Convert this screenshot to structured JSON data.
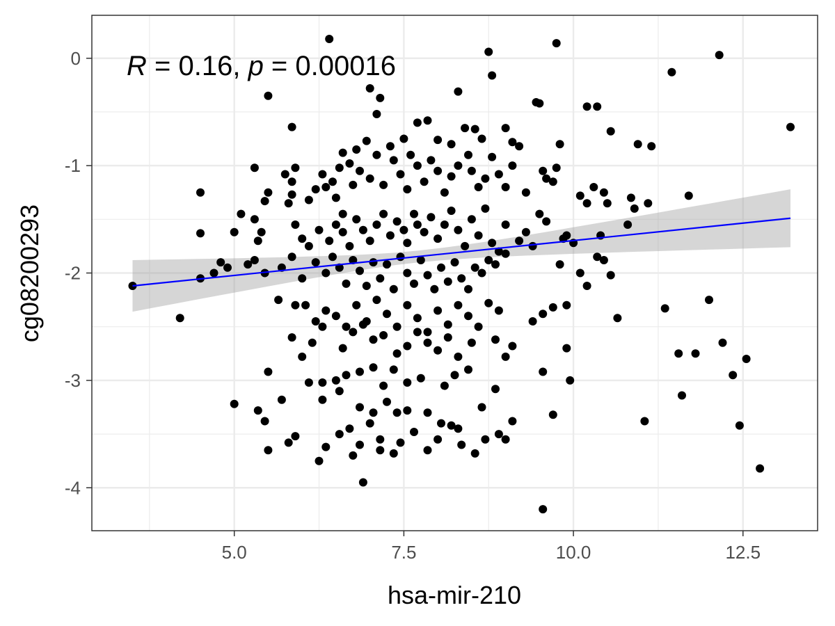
{
  "chart_data": {
    "type": "scatter",
    "title": "",
    "xlabel": "hsa-mir-210",
    "ylabel": "cg08200293",
    "xlim": [
      2.9,
      13.6
    ],
    "ylim": [
      -4.4,
      0.4
    ],
    "x_ticks": [
      5.0,
      7.5,
      10.0,
      12.5
    ],
    "x_tick_labels": [
      "5.0",
      "7.5",
      "10.0",
      "12.5"
    ],
    "y_ticks": [
      0,
      -1,
      -2,
      -3,
      -4
    ],
    "y_tick_labels": [
      "0",
      "-1",
      "-2",
      "-3",
      "-4"
    ],
    "grid": true,
    "theme": "bw",
    "annotation": {
      "r_symbol": "R",
      "r_text": " = 0.16, ",
      "p_symbol": "p",
      "p_text": " = 0.00016"
    },
    "regression": {
      "method": "lm",
      "x_range": [
        3.5,
        13.2
      ],
      "y_at_start": -2.12,
      "y_at_end": -1.49,
      "ci_at_start": [
        -2.36,
        -1.88
      ],
      "ci_at_end": [
        -1.76,
        -1.22
      ],
      "line_color": "#0000ff",
      "band_color": "#999999"
    },
    "point_color": "#000000",
    "points": [
      [
        6.4,
        0.18
      ],
      [
        9.75,
        0.14
      ],
      [
        12.15,
        0.03
      ],
      [
        8.75,
        0.06
      ],
      [
        8.8,
        -0.16
      ],
      [
        7.0,
        -0.28
      ],
      [
        7.15,
        -0.37
      ],
      [
        5.5,
        -0.35
      ],
      [
        8.3,
        -0.31
      ],
      [
        11.45,
        -0.13
      ],
      [
        13.2,
        -0.64
      ],
      [
        9.45,
        -0.41
      ],
      [
        9.5,
        -0.42
      ],
      [
        10.2,
        -0.45
      ],
      [
        10.35,
        -0.45
      ],
      [
        10.55,
        -0.68
      ],
      [
        10.95,
        -0.8
      ],
      [
        11.15,
        -0.82
      ],
      [
        9.8,
        -0.8
      ],
      [
        5.85,
        -0.64
      ],
      [
        7.1,
        -0.52
      ],
      [
        7.3,
        -0.82
      ],
      [
        7.5,
        -0.75
      ],
      [
        7.7,
        -0.6
      ],
      [
        7.85,
        -0.58
      ],
      [
        8.0,
        -0.76
      ],
      [
        8.2,
        -0.8
      ],
      [
        8.4,
        -0.65
      ],
      [
        8.55,
        -0.66
      ],
      [
        8.65,
        -0.75
      ],
      [
        9.0,
        -0.65
      ],
      [
        9.1,
        -0.78
      ],
      [
        9.2,
        -0.82
      ],
      [
        6.95,
        -0.77
      ],
      [
        6.8,
        -0.85
      ],
      [
        6.6,
        -0.88
      ],
      [
        6.7,
        -0.98
      ],
      [
        6.55,
        -1.02
      ],
      [
        6.3,
        -1.08
      ],
      [
        6.45,
        -1.15
      ],
      [
        5.9,
        -1.02
      ],
      [
        5.75,
        -1.08
      ],
      [
        5.85,
        -1.15
      ],
      [
        5.3,
        -1.02
      ],
      [
        4.5,
        -1.25
      ],
      [
        5.5,
        -1.25
      ],
      [
        5.45,
        -1.33
      ],
      [
        5.8,
        -1.35
      ],
      [
        5.85,
        -1.27
      ],
      [
        6.2,
        -1.22
      ],
      [
        6.1,
        -1.32
      ],
      [
        6.35,
        -1.2
      ],
      [
        6.5,
        -1.3
      ],
      [
        6.6,
        -1.45
      ],
      [
        6.75,
        -1.18
      ],
      [
        6.85,
        -1.05
      ],
      [
        7.0,
        -1.12
      ],
      [
        7.1,
        -0.9
      ],
      [
        7.2,
        -1.18
      ],
      [
        7.35,
        -0.95
      ],
      [
        7.45,
        -1.08
      ],
      [
        7.55,
        -1.22
      ],
      [
        7.6,
        -0.9
      ],
      [
        7.7,
        -1.0
      ],
      [
        7.8,
        -1.15
      ],
      [
        7.9,
        -0.95
      ],
      [
        8.0,
        -1.05
      ],
      [
        8.1,
        -1.25
      ],
      [
        8.2,
        -1.1
      ],
      [
        8.3,
        -1.0
      ],
      [
        8.45,
        -0.9
      ],
      [
        8.5,
        -1.05
      ],
      [
        8.6,
        -1.2
      ],
      [
        8.7,
        -1.12
      ],
      [
        8.8,
        -0.92
      ],
      [
        8.9,
        -1.08
      ],
      [
        9.0,
        -1.2
      ],
      [
        9.1,
        -1.0
      ],
      [
        9.3,
        -1.25
      ],
      [
        9.55,
        -1.05
      ],
      [
        9.7,
        -1.15
      ],
      [
        9.75,
        -1.02
      ],
      [
        9.6,
        -1.12
      ],
      [
        10.1,
        -1.28
      ],
      [
        10.3,
        -1.2
      ],
      [
        10.5,
        -1.35
      ],
      [
        10.45,
        -1.25
      ],
      [
        10.85,
        -1.3
      ],
      [
        11.1,
        -1.35
      ],
      [
        11.7,
        -1.28
      ],
      [
        10.2,
        -1.35
      ],
      [
        10.9,
        -1.4
      ],
      [
        4.5,
        -1.63
      ],
      [
        5.1,
        -1.45
      ],
      [
        5.3,
        -1.5
      ],
      [
        5.4,
        -1.62
      ],
      [
        5.35,
        -1.7
      ],
      [
        5.0,
        -1.62
      ],
      [
        5.9,
        -1.55
      ],
      [
        6.0,
        -1.68
      ],
      [
        6.1,
        -1.75
      ],
      [
        6.25,
        -1.6
      ],
      [
        6.4,
        -1.7
      ],
      [
        6.5,
        -1.55
      ],
      [
        6.6,
        -1.62
      ],
      [
        6.7,
        -1.75
      ],
      [
        6.8,
        -1.5
      ],
      [
        6.9,
        -1.6
      ],
      [
        7.0,
        -1.7
      ],
      [
        7.1,
        -1.55
      ],
      [
        7.2,
        -1.45
      ],
      [
        7.3,
        -1.65
      ],
      [
        7.4,
        -1.52
      ],
      [
        7.5,
        -1.6
      ],
      [
        7.55,
        -1.72
      ],
      [
        7.65,
        -1.45
      ],
      [
        7.7,
        -1.55
      ],
      [
        7.8,
        -1.62
      ],
      [
        7.9,
        -1.48
      ],
      [
        8.0,
        -1.68
      ],
      [
        8.1,
        -1.55
      ],
      [
        8.2,
        -1.42
      ],
      [
        8.3,
        -1.6
      ],
      [
        8.4,
        -1.75
      ],
      [
        8.5,
        -1.5
      ],
      [
        8.6,
        -1.65
      ],
      [
        8.7,
        -1.4
      ],
      [
        8.8,
        -1.72
      ],
      [
        8.9,
        -1.8
      ],
      [
        9.0,
        -1.55
      ],
      [
        9.2,
        -1.7
      ],
      [
        9.3,
        -1.62
      ],
      [
        9.4,
        -1.75
      ],
      [
        9.5,
        -1.45
      ],
      [
        9.6,
        -1.52
      ],
      [
        9.9,
        -1.65
      ],
      [
        10.0,
        -1.72
      ],
      [
        10.4,
        -1.65
      ],
      [
        10.8,
        -1.55
      ],
      [
        9.85,
        -1.68
      ],
      [
        4.5,
        -2.05
      ],
      [
        4.7,
        -2.0
      ],
      [
        4.8,
        -1.9
      ],
      [
        4.9,
        -1.95
      ],
      [
        5.2,
        -1.92
      ],
      [
        5.3,
        -1.88
      ],
      [
        5.45,
        -2.0
      ],
      [
        5.7,
        -1.95
      ],
      [
        5.85,
        -1.85
      ],
      [
        6.0,
        -2.05
      ],
      [
        6.2,
        -1.9
      ],
      [
        6.35,
        -2.0
      ],
      [
        6.45,
        -1.85
      ],
      [
        6.55,
        -1.95
      ],
      [
        6.65,
        -2.1
      ],
      [
        6.75,
        -1.88
      ],
      [
        6.85,
        -1.98
      ],
      [
        6.95,
        -2.12
      ],
      [
        7.05,
        -1.9
      ],
      [
        7.15,
        -2.05
      ],
      [
        7.25,
        -1.92
      ],
      [
        7.35,
        -2.15
      ],
      [
        7.45,
        -1.85
      ],
      [
        7.55,
        -2.0
      ],
      [
        7.65,
        -2.1
      ],
      [
        7.75,
        -1.88
      ],
      [
        7.85,
        -2.02
      ],
      [
        7.95,
        -2.15
      ],
      [
        8.05,
        -1.95
      ],
      [
        8.15,
        -2.08
      ],
      [
        8.25,
        -1.9
      ],
      [
        8.35,
        -2.05
      ],
      [
        8.45,
        -2.15
      ],
      [
        8.55,
        -1.95
      ],
      [
        8.65,
        -2.0
      ],
      [
        8.75,
        -1.88
      ],
      [
        8.85,
        -1.92
      ],
      [
        9.0,
        -1.82
      ],
      [
        9.8,
        -1.92
      ],
      [
        10.1,
        -2.0
      ],
      [
        10.2,
        -2.12
      ],
      [
        10.35,
        -1.85
      ],
      [
        10.45,
        -1.88
      ],
      [
        10.55,
        -2.02
      ],
      [
        3.5,
        -2.12
      ],
      [
        4.2,
        -2.42
      ],
      [
        5.65,
        -2.25
      ],
      [
        5.9,
        -2.3
      ],
      [
        6.05,
        -2.3
      ],
      [
        6.2,
        -2.45
      ],
      [
        6.35,
        -2.35
      ],
      [
        6.5,
        -2.4
      ],
      [
        6.65,
        -2.5
      ],
      [
        6.8,
        -2.3
      ],
      [
        6.95,
        -2.45
      ],
      [
        7.1,
        -2.25
      ],
      [
        7.25,
        -2.38
      ],
      [
        7.4,
        -2.5
      ],
      [
        7.55,
        -2.3
      ],
      [
        7.7,
        -2.42
      ],
      [
        7.85,
        -2.55
      ],
      [
        8.0,
        -2.35
      ],
      [
        8.15,
        -2.48
      ],
      [
        8.3,
        -2.3
      ],
      [
        8.45,
        -2.4
      ],
      [
        8.6,
        -2.5
      ],
      [
        8.75,
        -2.28
      ],
      [
        8.9,
        -2.35
      ],
      [
        9.4,
        -2.45
      ],
      [
        9.55,
        -2.38
      ],
      [
        9.7,
        -2.32
      ],
      [
        9.9,
        -2.3
      ],
      [
        10.65,
        -2.42
      ],
      [
        11.35,
        -2.33
      ],
      [
        12.0,
        -2.25
      ],
      [
        5.85,
        -2.6
      ],
      [
        6.0,
        -2.78
      ],
      [
        6.15,
        -2.65
      ],
      [
        6.3,
        -2.5
      ],
      [
        6.6,
        -2.7
      ],
      [
        6.75,
        -2.55
      ],
      [
        6.9,
        -2.48
      ],
      [
        7.05,
        -2.62
      ],
      [
        7.2,
        -2.58
      ],
      [
        7.4,
        -2.75
      ],
      [
        7.55,
        -2.68
      ],
      [
        7.7,
        -2.55
      ],
      [
        7.85,
        -2.65
      ],
      [
        8.0,
        -2.72
      ],
      [
        8.15,
        -2.6
      ],
      [
        8.3,
        -2.78
      ],
      [
        8.5,
        -2.65
      ],
      [
        8.85,
        -2.62
      ],
      [
        9.0,
        -2.78
      ],
      [
        9.1,
        -2.68
      ],
      [
        9.9,
        -2.7
      ],
      [
        11.55,
        -2.75
      ],
      [
        11.8,
        -2.75
      ],
      [
        12.2,
        -2.65
      ],
      [
        12.55,
        -2.8
      ],
      [
        5.5,
        -2.92
      ],
      [
        6.1,
        -3.02
      ],
      [
        6.3,
        -3.02
      ],
      [
        6.5,
        -3.0
      ],
      [
        6.65,
        -2.95
      ],
      [
        6.85,
        -2.92
      ],
      [
        7.05,
        -2.88
      ],
      [
        7.2,
        -3.05
      ],
      [
        7.35,
        -2.9
      ],
      [
        7.55,
        -3.02
      ],
      [
        7.75,
        -2.98
      ],
      [
        8.1,
        -3.05
      ],
      [
        8.25,
        -2.95
      ],
      [
        8.45,
        -2.9
      ],
      [
        8.85,
        -3.08
      ],
      [
        9.55,
        -2.92
      ],
      [
        9.95,
        -3.0
      ],
      [
        12.35,
        -2.95
      ],
      [
        5.0,
        -3.22
      ],
      [
        5.35,
        -3.28
      ],
      [
        5.45,
        -3.38
      ],
      [
        5.7,
        -3.18
      ],
      [
        6.3,
        -3.18
      ],
      [
        6.55,
        -3.1
      ],
      [
        6.85,
        -3.25
      ],
      [
        7.05,
        -3.3
      ],
      [
        7.25,
        -3.2
      ],
      [
        7.4,
        -3.3
      ],
      [
        7.55,
        -3.28
      ],
      [
        7.85,
        -3.3
      ],
      [
        8.05,
        -3.4
      ],
      [
        8.3,
        -3.45
      ],
      [
        8.65,
        -3.25
      ],
      [
        9.1,
        -3.38
      ],
      [
        9.7,
        -3.32
      ],
      [
        11.05,
        -3.38
      ],
      [
        11.6,
        -3.14
      ],
      [
        12.45,
        -3.42
      ],
      [
        5.5,
        -3.65
      ],
      [
        5.8,
        -3.58
      ],
      [
        5.9,
        -3.52
      ],
      [
        6.25,
        -3.75
      ],
      [
        6.35,
        -3.62
      ],
      [
        6.55,
        -3.5
      ],
      [
        6.7,
        -3.45
      ],
      [
        6.85,
        -3.6
      ],
      [
        7.0,
        -3.4
      ],
      [
        7.15,
        -3.55
      ],
      [
        7.35,
        -3.68
      ],
      [
        7.45,
        -3.58
      ],
      [
        7.65,
        -3.48
      ],
      [
        7.85,
        -3.65
      ],
      [
        8.0,
        -3.55
      ],
      [
        8.2,
        -3.42
      ],
      [
        8.35,
        -3.6
      ],
      [
        8.55,
        -3.68
      ],
      [
        8.7,
        -3.55
      ],
      [
        8.9,
        -3.5
      ],
      [
        9.0,
        -3.55
      ],
      [
        6.9,
        -3.95
      ],
      [
        9.55,
        -4.2
      ],
      [
        12.75,
        -3.82
      ],
      [
        7.15,
        -3.65
      ],
      [
        6.75,
        -3.7
      ]
    ]
  }
}
